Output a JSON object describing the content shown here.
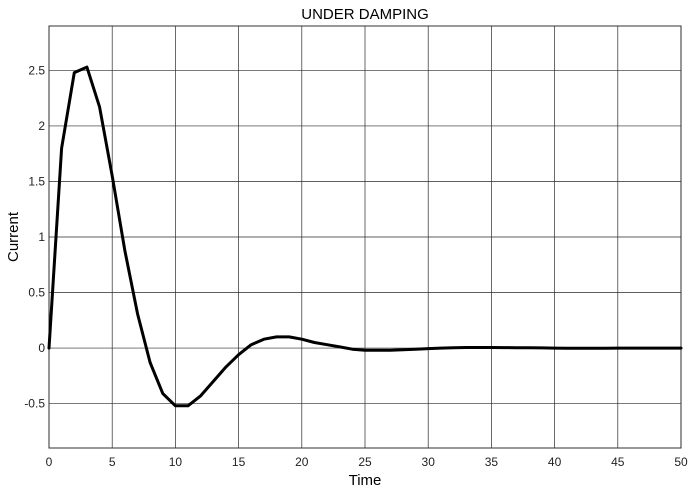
{
  "chart_data": {
    "type": "line",
    "title": "UNDER DAMPING",
    "xlabel": "Time",
    "ylabel": "Current",
    "xlim": [
      0,
      50
    ],
    "ylim": [
      -0.9,
      2.9
    ],
    "xticks": [
      0,
      5,
      10,
      15,
      20,
      25,
      30,
      35,
      40,
      45,
      50
    ],
    "yticks": [
      -0.5,
      0,
      0.5,
      1,
      1.5,
      2,
      2.5
    ],
    "ytick_labels": [
      "-0.5",
      "0",
      "0.5",
      "1",
      "1.5",
      "2",
      "2.5"
    ],
    "grid": true,
    "series": [
      {
        "color": "#000000",
        "x": [
          0,
          1,
          2,
          3,
          4,
          5,
          6,
          7,
          8,
          9,
          10,
          11,
          12,
          13,
          14,
          15,
          16,
          17,
          18,
          19,
          20,
          21,
          22,
          23,
          24,
          25,
          26,
          27,
          28,
          29,
          30,
          31,
          32,
          33,
          34,
          35,
          36,
          37,
          38,
          39,
          40,
          41,
          42,
          43,
          44,
          45,
          46,
          47,
          48,
          49,
          50
        ],
        "y": [
          0,
          1.8,
          2.48,
          2.53,
          2.17,
          1.55,
          0.88,
          0.31,
          -0.13,
          -0.41,
          -0.52,
          -0.52,
          -0.43,
          -0.3,
          -0.17,
          -0.06,
          0.03,
          0.08,
          0.1,
          0.1,
          0.08,
          0.05,
          0.03,
          0.01,
          -0.01,
          -0.02,
          -0.02,
          -0.02,
          -0.015,
          -0.01,
          -0.005,
          0,
          0.003,
          0.005,
          0.005,
          0.005,
          0.004,
          0.003,
          0.002,
          0.001,
          0,
          -0.001,
          -0.001,
          -0.001,
          -0.001,
          0,
          0,
          0,
          0,
          0,
          0
        ]
      }
    ]
  }
}
